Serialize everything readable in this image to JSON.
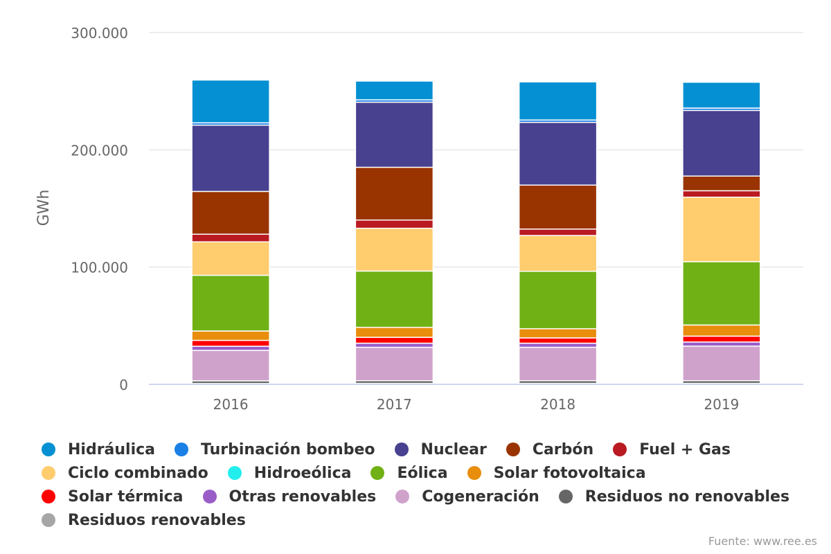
{
  "chart_data": {
    "type": "bar",
    "stacked": true,
    "categories": [
      "2016",
      "2017",
      "2018",
      "2019"
    ],
    "ylabel": "GWh",
    "ylim": [
      0,
      300000
    ],
    "yticks": [
      "0",
      "100.000",
      "200.000",
      "300.000"
    ],
    "yticks_values": [
      0,
      100000,
      200000,
      300000
    ],
    "grid": true,
    "legend_position": "bottom",
    "source": "Fuente: www.ree.es",
    "series": [
      {
        "name": "Residuos renovables",
        "color": "#a6a6a6",
        "values": [
          700,
          800,
          800,
          800
        ]
      },
      {
        "name": "Residuos no renovables",
        "color": "#666666",
        "values": [
          2300,
          2300,
          2300,
          2300
        ]
      },
      {
        "name": "Cogeneración",
        "color": "#cfa2cb",
        "values": [
          26000,
          28500,
          28500,
          29500
        ]
      },
      {
        "name": "Otras renovables",
        "color": "#9a5dc8",
        "values": [
          3500,
          3500,
          3500,
          3500
        ]
      },
      {
        "name": "Solar térmica",
        "color": "#ff0000",
        "values": [
          5000,
          5000,
          4500,
          5000
        ]
      },
      {
        "name": "Solar fotovoltaica",
        "color": "#e88d0c",
        "values": [
          8000,
          8500,
          7800,
          9500
        ]
      },
      {
        "name": "Hidroeólica",
        "color": "#22eeee",
        "values": [
          10,
          10,
          10,
          10
        ]
      },
      {
        "name": "Eólica",
        "color": "#70b116",
        "values": [
          47500,
          48000,
          49000,
          54000
        ]
      },
      {
        "name": "Ciclo combinado",
        "color": "#ffcc6e",
        "values": [
          28500,
          36500,
          30500,
          55000
        ]
      },
      {
        "name": "Fuel + Gas",
        "color": "#ba1a22",
        "values": [
          6500,
          7000,
          5500,
          5500
        ]
      },
      {
        "name": "Carbón",
        "color": "#993300",
        "values": [
          36500,
          45000,
          37500,
          12500
        ]
      },
      {
        "name": "Nuclear",
        "color": "#48418f",
        "values": [
          56500,
          55500,
          53500,
          56000
        ]
      },
      {
        "name": "Turbinación bombeo",
        "color": "#1a80e6",
        "values": [
          2000,
          2000,
          2000,
          2000
        ]
      },
      {
        "name": "Hidráulica",
        "color": "#0490d2",
        "values": [
          36500,
          16000,
          32500,
          22000
        ]
      }
    ]
  },
  "legend_rows": [
    [
      "Hidráulica",
      "Turbinación bombeo",
      "Nuclear",
      "Carbón",
      "Fuel + Gas"
    ],
    [
      "Ciclo combinado",
      "Hidroeólica",
      "Eólica",
      "Solar fotovoltaica"
    ],
    [
      "Solar térmica",
      "Otras renovables",
      "Cogeneración",
      "Residuos no renovables"
    ],
    [
      "Residuos renovables"
    ]
  ]
}
